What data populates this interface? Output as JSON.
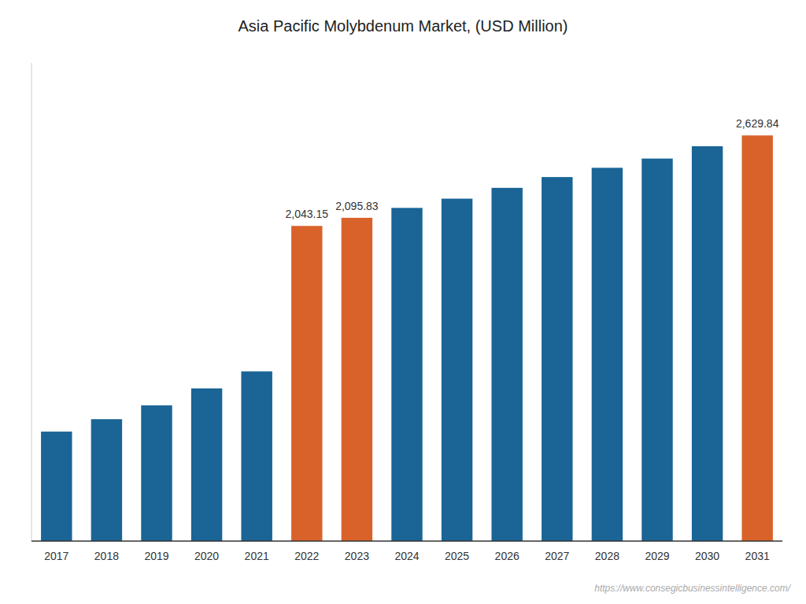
{
  "chart_data": {
    "type": "bar",
    "title": "Asia Pacific Molybdenum Market, (USD Million)",
    "categories": [
      "2017",
      "2018",
      "2019",
      "2020",
      "2021",
      "2022",
      "2023",
      "2024",
      "2025",
      "2026",
      "2027",
      "2028",
      "2029",
      "2030",
      "2031"
    ],
    "values": [
      710,
      790,
      880,
      990,
      1100,
      2043.15,
      2095.83,
      2160,
      2220,
      2290,
      2360,
      2420,
      2480,
      2560,
      2629.84
    ],
    "value_labels": [
      null,
      null,
      null,
      null,
      null,
      "2,043.15",
      "2,095.83",
      null,
      null,
      null,
      null,
      null,
      null,
      null,
      "2,629.84"
    ],
    "data_labels": true,
    "colors": [
      "#1a6496",
      "#1a6496",
      "#1a6496",
      "#1a6496",
      "#1a6496",
      "#d9622b",
      "#d9622b",
      "#1a6496",
      "#1a6496",
      "#1a6496",
      "#1a6496",
      "#1a6496",
      "#1a6496",
      "#1a6496",
      "#d9622b"
    ],
    "ylim": [
      0,
      3100
    ],
    "tick_labels": "x",
    "grid": false,
    "annotations": [
      "https://www.consegicbusinessintelligence.com/"
    ]
  }
}
